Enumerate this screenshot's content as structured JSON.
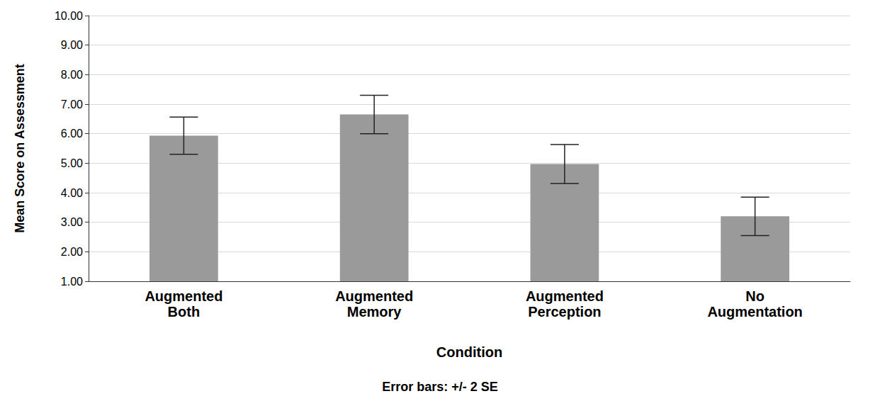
{
  "chart_data": {
    "type": "bar",
    "categories": [
      "Augmented\nBoth",
      "Augmented\nMemory",
      "Augmented\nPerception",
      "No\nAugmentation"
    ],
    "values": [
      5.93,
      6.65,
      4.97,
      3.2
    ],
    "errors": [
      0.63,
      0.65,
      0.66,
      0.65
    ],
    "error_label": "Error bars: +/- 2 SE",
    "x_label": "Condition",
    "y_label": "Mean Score on Assessment",
    "color": "#9a9a9a",
    "ylim": [
      1,
      10
    ],
    "yticks": [
      {
        "value": 1,
        "label": "1.00"
      },
      {
        "value": 2,
        "label": "2.00"
      },
      {
        "value": 3,
        "label": "3.00"
      },
      {
        "value": 4,
        "label": "4.00"
      },
      {
        "value": 5,
        "label": "5.00"
      },
      {
        "value": 6,
        "label": "6.00"
      },
      {
        "value": 7,
        "label": "7.00"
      },
      {
        "value": 8,
        "label": "8.00"
      },
      {
        "value": 9,
        "label": "9.00"
      },
      {
        "value": 10,
        "label": "10.00"
      }
    ],
    "grid": true
  }
}
